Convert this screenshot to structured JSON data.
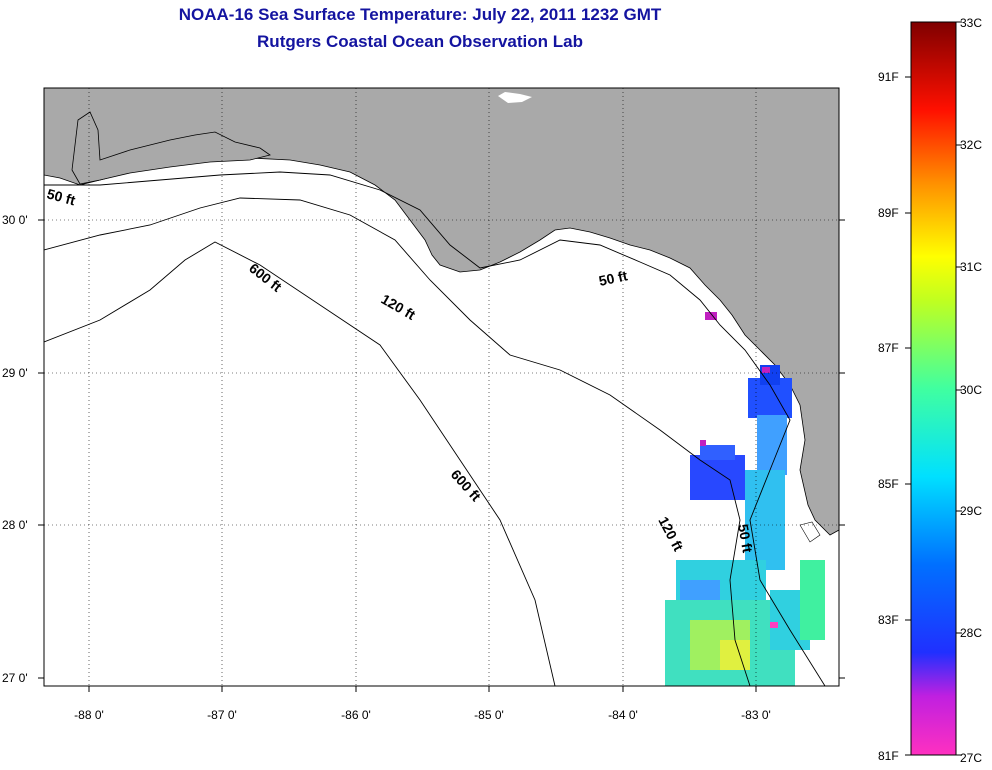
{
  "title": {
    "line1": "NOAA-16 Sea Surface Temperature:  July 22, 2011 1232 GMT",
    "line2": "Rutgers Coastal Ocean Observation Lab"
  },
  "map": {
    "land_color": "#a9a9a9",
    "water_color": "#ffffff",
    "grid": true,
    "lat_labels": [
      "30 0'",
      "29 0'",
      "28 0'",
      "27 0'"
    ],
    "lon_labels": [
      "-88 0'",
      "-87 0'",
      "-86 0'",
      "-85 0'",
      "-84 0'",
      "-83 0'"
    ],
    "contours": [
      {
        "id": "c50a",
        "label": "50 ft"
      },
      {
        "id": "c50b",
        "label": "50 ft"
      },
      {
        "id": "c50c",
        "label": "50 ft"
      },
      {
        "id": "c120a",
        "label": "120 ft"
      },
      {
        "id": "c120b",
        "label": "120 ft"
      },
      {
        "id": "c600a",
        "label": "600 ft"
      },
      {
        "id": "c600b",
        "label": "600 ft"
      }
    ]
  },
  "colorbar": {
    "celsius": [
      "33C",
      "32C",
      "31C",
      "30C",
      "29C",
      "28C",
      "27C"
    ],
    "fahrenheit": [
      "91F",
      "89F",
      "87F",
      "85F",
      "83F",
      "81F"
    ],
    "colors": [
      "#7f0000",
      "#ff0000",
      "#ff8000",
      "#ffff00",
      "#00ff80",
      "#00ffff",
      "#0060ff",
      "#0000ff",
      "#ff00ff",
      "#ff40c0"
    ]
  }
}
